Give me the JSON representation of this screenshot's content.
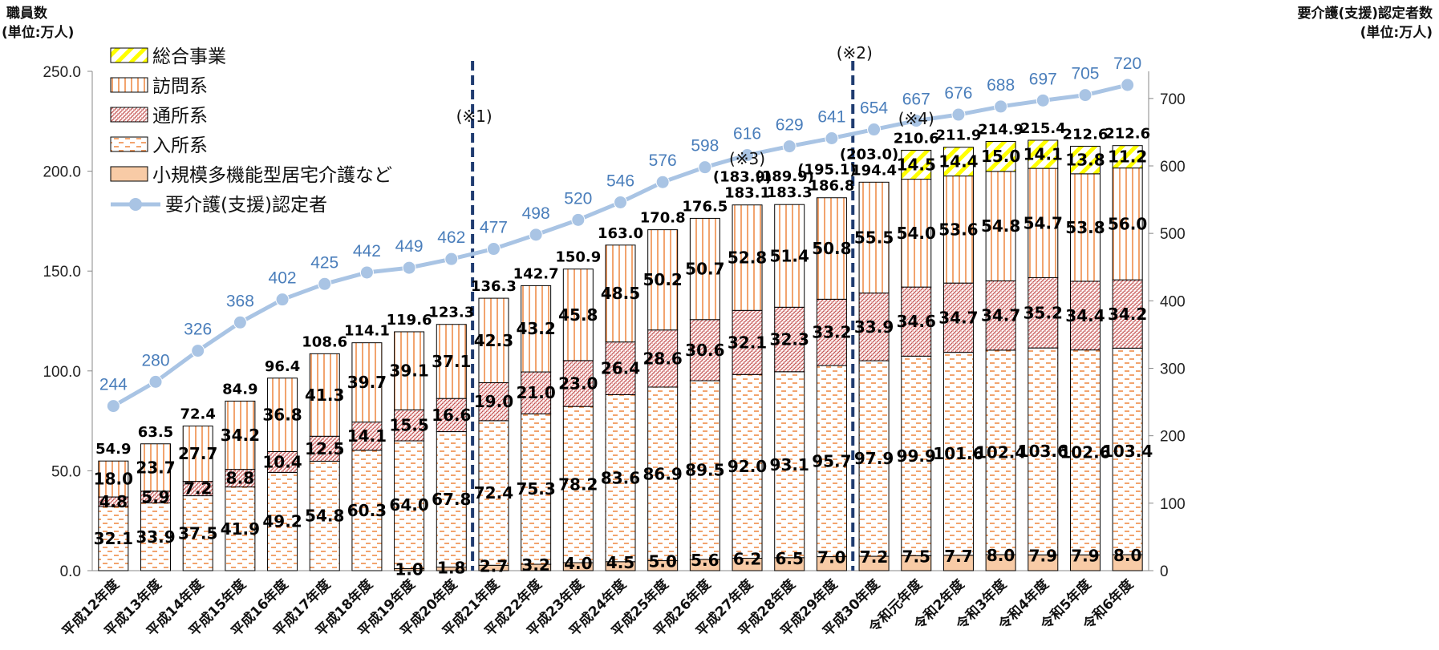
{
  "chart_data": {
    "type": "bar",
    "subtype": "stacked-bar-with-line",
    "left_axis_title": [
      "職員数",
      "(単位:万人)"
    ],
    "right_axis_title": [
      "要介護(支援)認定者数",
      "(単位:万人)"
    ],
    "left_ylim": [
      0,
      250
    ],
    "left_ticks": [
      "0.0",
      "50.0",
      "100.0",
      "150.0",
      "200.0",
      "250.0"
    ],
    "right_ylim": [
      0,
      720
    ],
    "right_ticks": [
      "0",
      "100",
      "200",
      "300",
      "400",
      "500",
      "600",
      "700"
    ],
    "categories": [
      "平成12年度",
      "平成13年度",
      "平成14年度",
      "平成15年度",
      "平成16年度",
      "平成17年度",
      "平成18年度",
      "平成19年度",
      "平成20年度",
      "平成21年度",
      "平成22年度",
      "平成23年度",
      "平成24年度",
      "平成25年度",
      "平成26年度",
      "平成27年度",
      "平成28年度",
      "平成29年度",
      "平成30年度",
      "令和元年度",
      "令和2年度",
      "令和3年度",
      "令和4年度",
      "令和5年度",
      "令和6年度"
    ],
    "series": [
      {
        "name": "小規模多機能型居宅介護など",
        "key": "small",
        "color": "#f8cba6",
        "values": [
          null,
          null,
          null,
          null,
          null,
          null,
          null,
          1.0,
          1.8,
          2.7,
          3.2,
          4.0,
          4.5,
          5.0,
          5.6,
          6.2,
          6.5,
          7.0,
          7.2,
          7.5,
          7.7,
          8.0,
          7.9,
          7.9,
          8.0
        ]
      },
      {
        "name": "入所系",
        "key": "nyusho",
        "color": "#ed7d31",
        "values": [
          32.1,
          33.9,
          37.5,
          41.9,
          49.2,
          54.8,
          60.3,
          64.0,
          67.8,
          72.4,
          75.3,
          78.2,
          83.6,
          86.9,
          89.5,
          92.0,
          93.1,
          95.7,
          97.9,
          99.9,
          101.6,
          102.4,
          103.6,
          102.6,
          103.4
        ]
      },
      {
        "name": "通所系",
        "key": "tsusho",
        "color": "#c0504d",
        "values": [
          4.8,
          5.9,
          7.2,
          8.8,
          10.4,
          12.5,
          14.1,
          15.5,
          16.6,
          19.0,
          21.0,
          23.0,
          26.4,
          28.6,
          30.6,
          32.1,
          32.3,
          33.2,
          33.9,
          34.6,
          34.7,
          34.7,
          35.2,
          34.4,
          34.2
        ]
      },
      {
        "name": "訪問系",
        "key": "homon",
        "color": "#ed7d31",
        "values": [
          18.0,
          23.7,
          27.7,
          34.2,
          36.8,
          41.3,
          39.7,
          39.1,
          37.1,
          42.3,
          43.2,
          45.8,
          48.5,
          50.2,
          50.7,
          52.8,
          51.4,
          50.8,
          55.5,
          54.0,
          53.6,
          54.8,
          54.7,
          53.8,
          56.0
        ]
      },
      {
        "name": "総合事業",
        "key": "sogo",
        "color": "#ffff00",
        "values": [
          null,
          null,
          null,
          null,
          null,
          null,
          null,
          null,
          null,
          null,
          null,
          null,
          null,
          null,
          null,
          null,
          null,
          null,
          null,
          14.5,
          14.4,
          15.0,
          14.1,
          13.8,
          11.2
        ]
      }
    ],
    "totals": [
      "54.9",
      "63.5",
      "72.4",
      "84.9",
      "96.4",
      "108.6",
      "114.1",
      "119.6",
      "123.3",
      "136.3",
      "142.7",
      "150.9",
      "163.0",
      "170.8",
      "176.5",
      "183.1",
      "183.3",
      "186.8",
      "194.4",
      "210.6",
      "211.9",
      "214.9",
      "215.4",
      "212.6",
      "212.6"
    ],
    "alt_totals": [
      null,
      null,
      null,
      null,
      null,
      null,
      null,
      null,
      null,
      null,
      null,
      null,
      null,
      null,
      null,
      "(183.9)",
      "(189.9)",
      "(195.1)",
      "(203.0)",
      null,
      null,
      null,
      null,
      null,
      null
    ],
    "line": {
      "name": "要介護(支援)認定者",
      "color": "#a9c4e4",
      "values": [
        244,
        280,
        326,
        368,
        402,
        425,
        442,
        449,
        462,
        477,
        498,
        520,
        546,
        576,
        598,
        616,
        629,
        641,
        654,
        667,
        676,
        688,
        697,
        705,
        720
      ]
    },
    "legend_placement": "top-left",
    "legend": [
      {
        "key": "sogo",
        "label": "総合事業"
      },
      {
        "key": "homon",
        "label": "訪問系"
      },
      {
        "key": "tsusho",
        "label": "通所系"
      },
      {
        "key": "nyusho",
        "label": "入所系"
      },
      {
        "key": "small",
        "label": "小規模多機能型居宅介護など"
      },
      {
        "key": "line",
        "label": "要介護(支援)認定者"
      }
    ],
    "annotations": [
      {
        "text": "(※1)",
        "after_index": 8
      },
      {
        "text": "(※2)",
        "after_index": 17
      },
      {
        "text": "(※3)",
        "at_index": 15
      },
      {
        "text": "(※4)",
        "at_index": 19
      }
    ]
  }
}
